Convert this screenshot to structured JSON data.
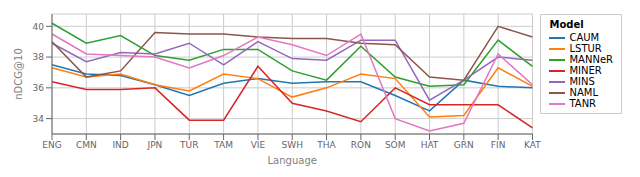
{
  "chart_data": {
    "type": "line",
    "xlabel": "Language",
    "ylabel": "nDCG@10",
    "legend_title": "Model",
    "categories": [
      "ENG",
      "CMN",
      "IND",
      "JPN",
      "TUR",
      "TAM",
      "VIE",
      "SWH",
      "THA",
      "RON",
      "SOM",
      "HAT",
      "GRN",
      "FIN",
      "KAT"
    ],
    "series": [
      {
        "name": "CAUM",
        "color": "#1f77b4",
        "values": [
          37.5,
          36.9,
          36.8,
          36.2,
          35.5,
          36.3,
          36.6,
          36.3,
          36.4,
          36.4,
          35.5,
          34.5,
          36.5,
          36.1,
          36.0
        ]
      },
      {
        "name": "LSTUR",
        "color": "#ff7f0e",
        "values": [
          37.3,
          36.7,
          36.9,
          36.2,
          35.8,
          36.9,
          36.6,
          35.4,
          36.0,
          36.9,
          36.6,
          34.1,
          34.2,
          37.3,
          36.1
        ]
      },
      {
        "name": "MANNeR",
        "color": "#2ca02c",
        "values": [
          40.2,
          38.9,
          39.4,
          38.1,
          37.8,
          38.5,
          38.5,
          37.1,
          36.5,
          38.7,
          36.7,
          36.1,
          36.2,
          39.1,
          37.4
        ]
      },
      {
        "name": "MINER",
        "color": "#d62728",
        "values": [
          36.4,
          35.9,
          35.9,
          36.0,
          33.9,
          33.9,
          37.4,
          35.0,
          34.5,
          33.8,
          36.0,
          34.9,
          34.9,
          34.9,
          33.4
        ]
      },
      {
        "name": "MINS",
        "color": "#9467bd",
        "values": [
          38.9,
          37.7,
          38.3,
          38.2,
          38.9,
          37.5,
          39.0,
          37.9,
          37.8,
          39.1,
          39.1,
          35.2,
          36.5,
          38.0,
          37.8
        ]
      },
      {
        "name": "NAML",
        "color": "#8c564b",
        "values": [
          39.0,
          36.7,
          37.1,
          39.6,
          39.5,
          39.5,
          39.3,
          39.2,
          39.2,
          38.9,
          38.8,
          36.7,
          36.5,
          40.0,
          39.3
        ]
      },
      {
        "name": "TANR",
        "color": "#e377c2",
        "values": [
          39.5,
          38.2,
          38.1,
          38.0,
          37.3,
          38.1,
          39.3,
          38.8,
          38.1,
          39.5,
          34.0,
          33.2,
          33.7,
          38.2,
          36.2
        ]
      }
    ],
    "ylim": [
      33.0,
      40.8
    ],
    "yticks": [
      34,
      36,
      38,
      40
    ],
    "grid": true,
    "legend": "right"
  }
}
